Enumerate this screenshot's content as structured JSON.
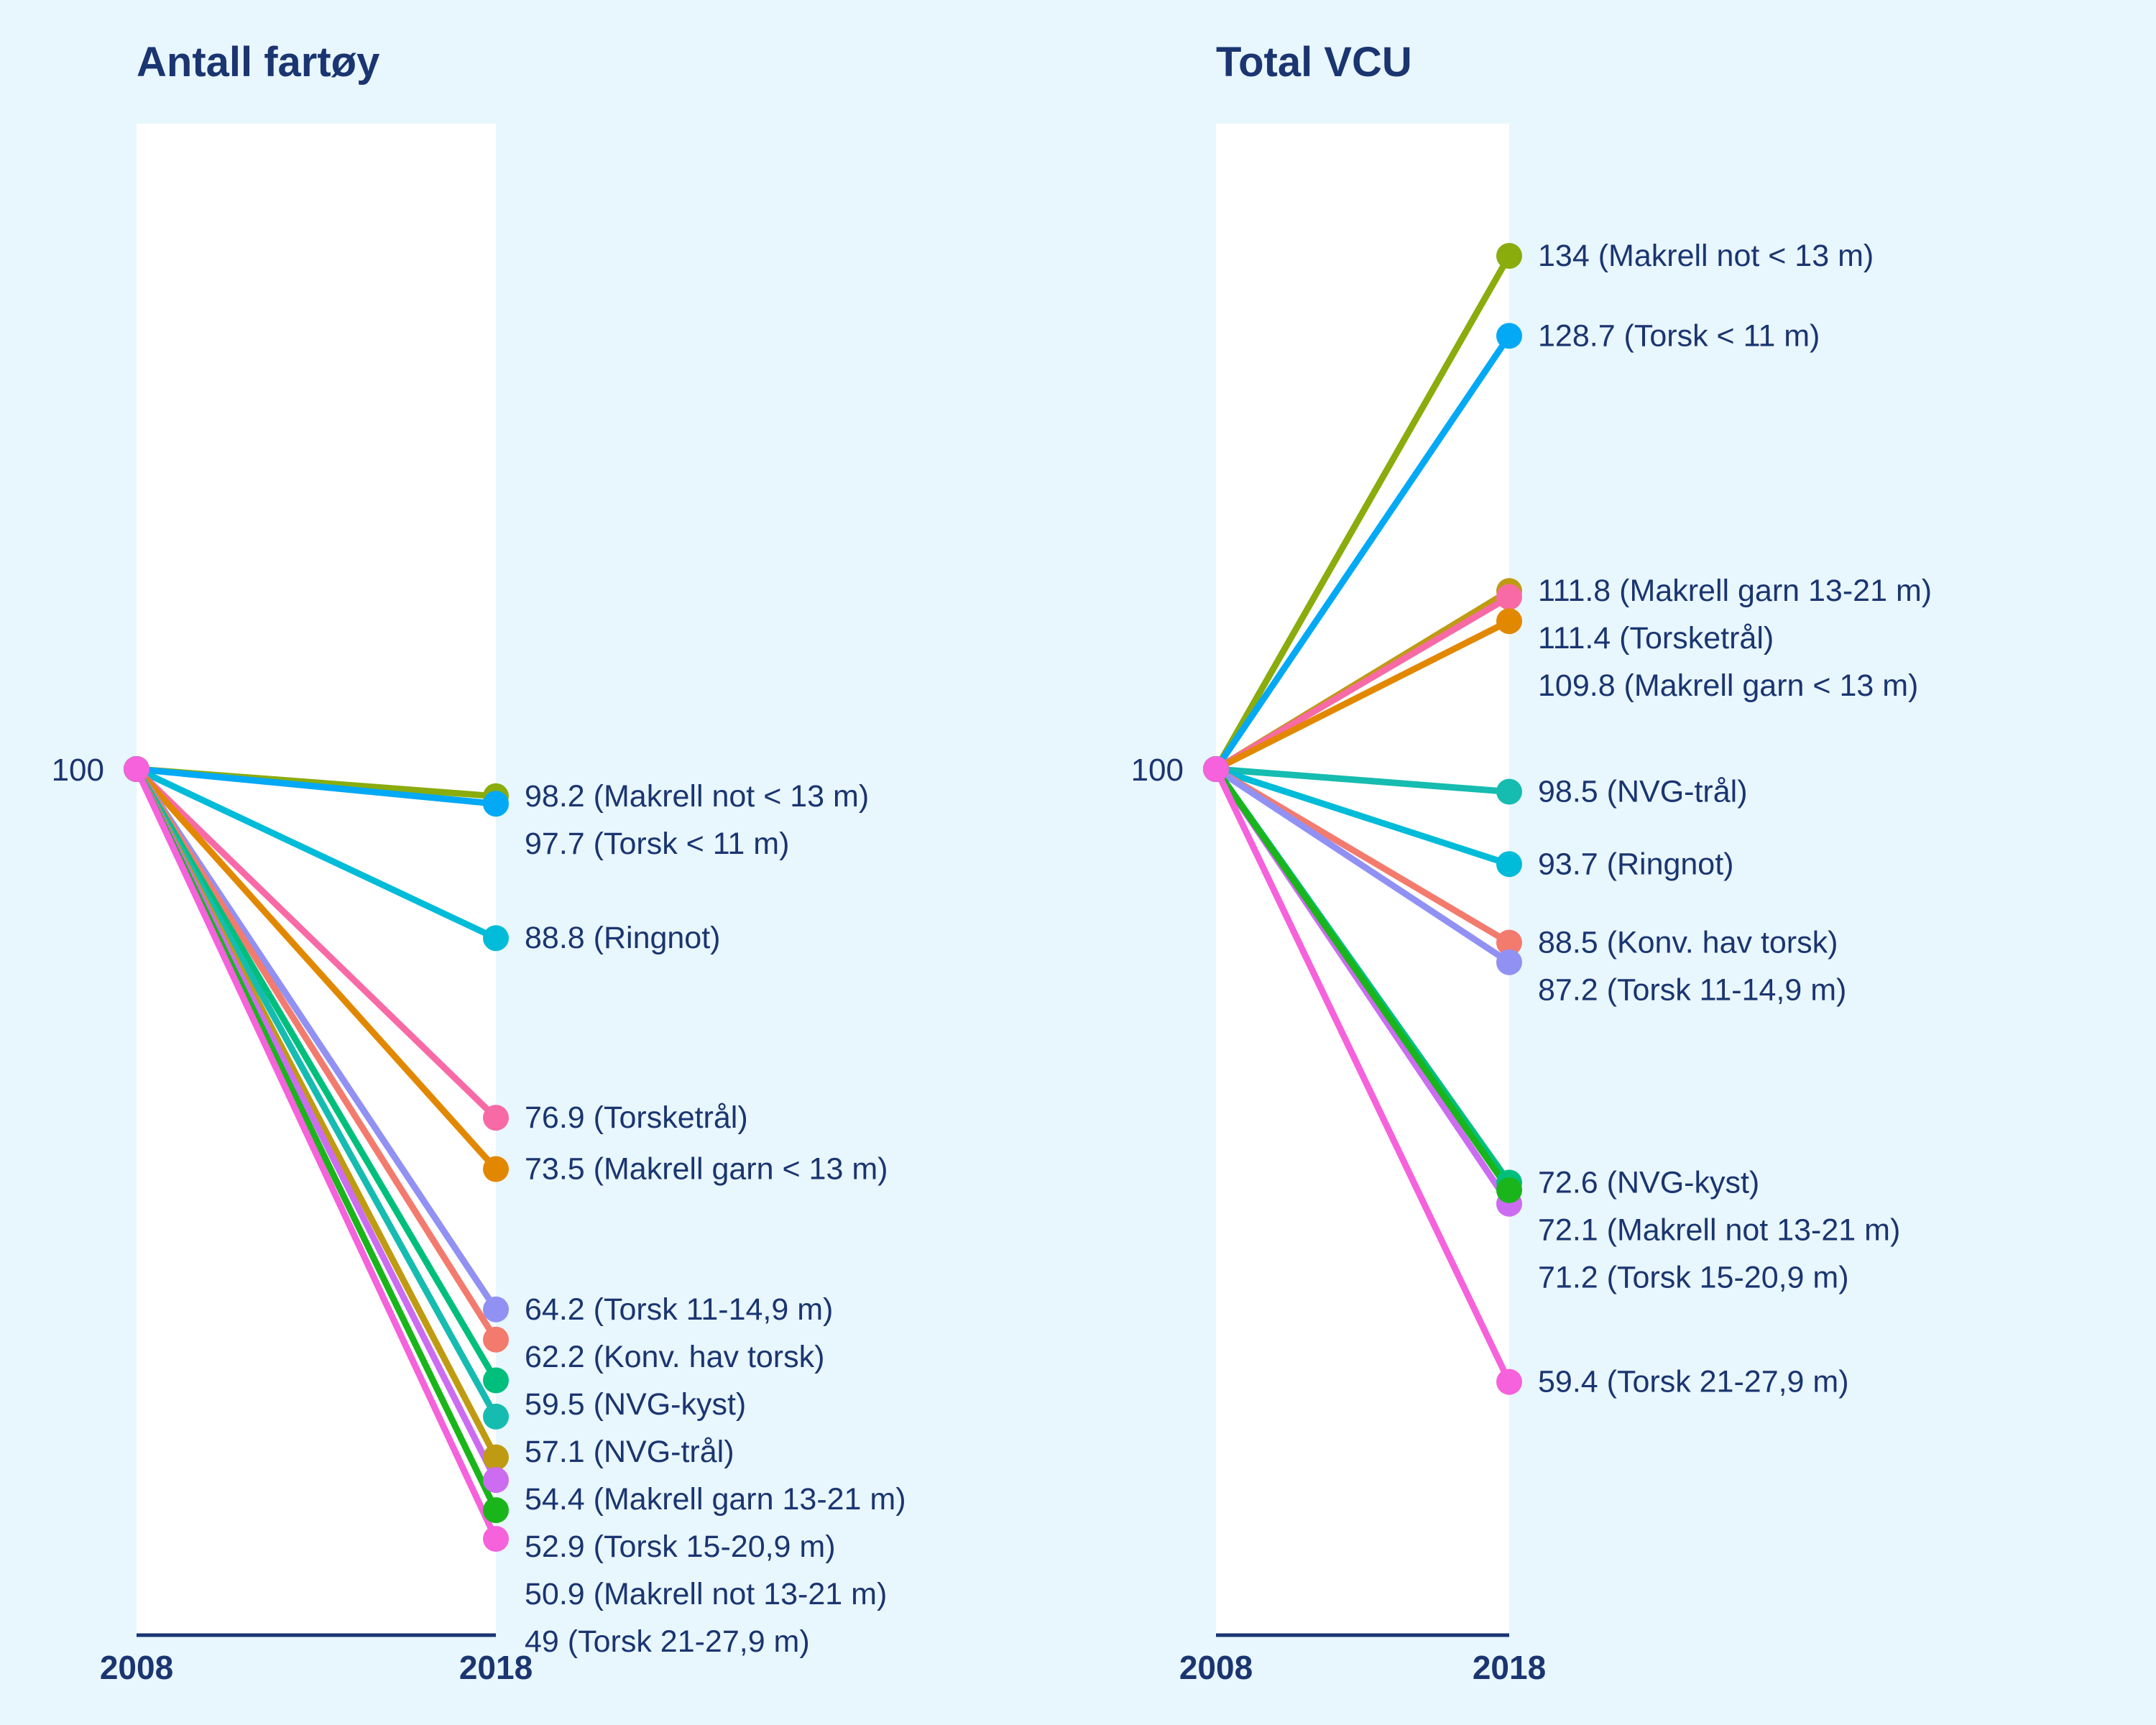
{
  "chart_data": [
    {
      "type": "line",
      "title": "Antall fartøy",
      "categories": [
        "2008",
        "2018"
      ],
      "base_value": 100,
      "base_label": "100",
      "ylim": [
        0,
        225
      ],
      "series": [
        {
          "name": "Makrell not < 13 m",
          "color": "#8aac0d",
          "values": [
            100,
            98.2
          ],
          "label": "98.2 (Makrell not < 13 m)"
        },
        {
          "name": "Torsk < 11 m",
          "color": "#03a9f4",
          "values": [
            100,
            97.7
          ],
          "label": "97.7 (Torsk < 11 m)"
        },
        {
          "name": "Ringnot",
          "color": "#00bcd8",
          "values": [
            100,
            88.8
          ],
          "label": "88.8 (Ringnot)"
        },
        {
          "name": "Torsketrål",
          "color": "#f86aa6",
          "values": [
            100,
            76.9
          ],
          "label": "76.9 (Torsketrål)"
        },
        {
          "name": "Makrell garn < 13 m",
          "color": "#e28800",
          "values": [
            100,
            73.5
          ],
          "label": "73.5 (Makrell garn < 13 m)"
        },
        {
          "name": "Torsk 11-14,9 m",
          "color": "#9191f4",
          "values": [
            100,
            64.2
          ],
          "label": "64.2 (Torsk 11-14,9 m)"
        },
        {
          "name": "Konv. hav torsk",
          "color": "#f37b6e",
          "values": [
            100,
            62.2
          ],
          "label": "62.2 (Konv. hav torsk)"
        },
        {
          "name": "NVG-kyst",
          "color": "#00bf7d",
          "values": [
            100,
            59.5
          ],
          "label": "59.5 (NVG-kyst)"
        },
        {
          "name": "NVG-trål",
          "color": "#16bcb0",
          "values": [
            100,
            57.1
          ],
          "label": "57.1 (NVG-trål)"
        },
        {
          "name": "Makrell garn 13-21 m",
          "color": "#bf9b13",
          "values": [
            100,
            54.4
          ],
          "label": "54.4 (Makrell garn 13-21 m)"
        },
        {
          "name": "Torsk 15-20,9 m",
          "color": "#cc6cf0",
          "values": [
            100,
            52.9
          ],
          "label": "52.9 (Torsk 15-20,9 m)"
        },
        {
          "name": "Makrell not 13-21 m",
          "color": "#1ab51a",
          "values": [
            100,
            50.9
          ],
          "label": "50.9 (Makrell not 13-21 m)"
        },
        {
          "name": "Torsk 21-27,9 m",
          "color": "#f562dc",
          "values": [
            100,
            49
          ],
          "label": "49 (Torsk 21-27,9 m)"
        }
      ]
    },
    {
      "type": "line",
      "title": "Total VCU",
      "categories": [
        "2008",
        "2018"
      ],
      "base_value": 100,
      "base_label": "100",
      "ylim": [
        0,
        225
      ],
      "series": [
        {
          "name": "Makrell not < 13 m",
          "color": "#8aac0d",
          "values": [
            100,
            134
          ],
          "label": "134 (Makrell not < 13 m)"
        },
        {
          "name": "Torsk < 11 m",
          "color": "#03a9f4",
          "values": [
            100,
            128.7
          ],
          "label": "128.7 (Torsk < 11 m)"
        },
        {
          "name": "Makrell garn 13-21 m",
          "color": "#bf9b13",
          "values": [
            100,
            111.8
          ],
          "label": "111.8 (Makrell garn 13-21 m)"
        },
        {
          "name": "Torsketrål",
          "color": "#f86aa6",
          "values": [
            100,
            111.4
          ],
          "label": "111.4 (Torsketrål)"
        },
        {
          "name": "Makrell garn < 13 m",
          "color": "#e28800",
          "values": [
            100,
            109.8
          ],
          "label": "109.8 (Makrell garn < 13 m)"
        },
        {
          "name": "NVG-trål",
          "color": "#16bcb0",
          "values": [
            100,
            98.5
          ],
          "label": "98.5 (NVG-trål)"
        },
        {
          "name": "Ringnot",
          "color": "#00bcd8",
          "values": [
            100,
            93.7
          ],
          "label": "93.7 (Ringnot)"
        },
        {
          "name": "Konv. hav torsk",
          "color": "#f37b6e",
          "values": [
            100,
            88.5
          ],
          "label": "88.5 (Konv. hav torsk)"
        },
        {
          "name": "Torsk 11-14,9 m",
          "color": "#9191f4",
          "values": [
            100,
            87.2
          ],
          "label": "87.2 (Torsk 11-14,9 m)"
        },
        {
          "name": "NVG-kyst",
          "color": "#00bf7d",
          "values": [
            100,
            72.6
          ],
          "label": "72.6 (NVG-kyst)"
        },
        {
          "name": "Torsk 15-20,9 m",
          "color": "#cc6cf0",
          "values": [
            100,
            71.2
          ],
          "label": "71.2 (Torsk 15-20,9 m)"
        },
        {
          "name": "Makrell not 13-21 m",
          "color": "#1ab51a",
          "values": [
            100,
            72.1
          ],
          "label": "72.1 (Makrell not 13-21 m)"
        },
        {
          "name": "Torsk 21-27,9 m",
          "color": "#f562dc",
          "values": [
            100,
            59.4
          ],
          "label": "59.4 (Torsk 21-27,9 m)"
        }
      ]
    }
  ]
}
